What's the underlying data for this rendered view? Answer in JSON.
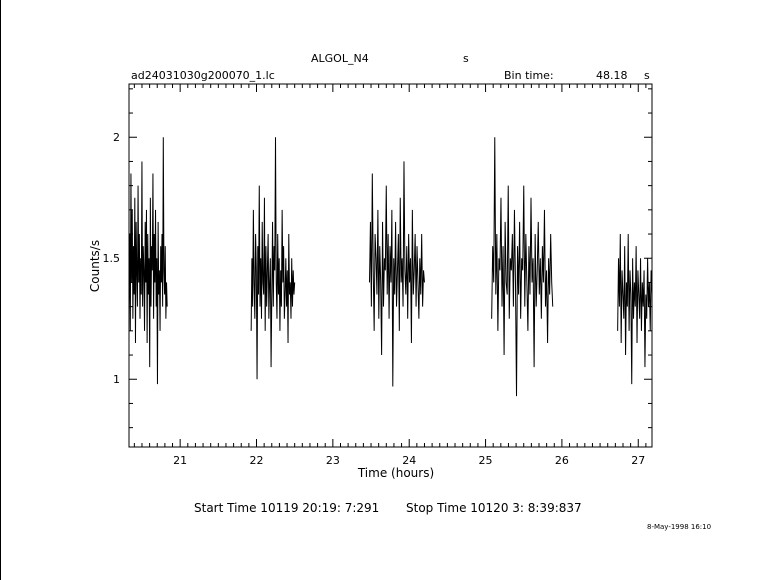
{
  "header": {
    "object_name": "ALGOL_N4",
    "object_unit": "s",
    "file_name": "ad24031030g200070_1.lc",
    "bin_time_label": "Bin time:",
    "bin_time_value": "48.18",
    "bin_time_unit": "s"
  },
  "footer": {
    "start_time": "Start Time 10119 20:19: 7:291",
    "stop_time": "Stop Time 10120  3: 8:39:837",
    "plot_date": "8-May-1998 16:10"
  },
  "chart_data": {
    "type": "line",
    "title": "ALGOL_N4",
    "xlabel": "Time (hours)",
    "ylabel": "Counts/s",
    "xlim": [
      20.33,
      27.18
    ],
    "ylim": [
      0.72,
      2.22
    ],
    "x_ticks": [
      21,
      22,
      23,
      24,
      25,
      26,
      27
    ],
    "y_ticks": [
      1,
      1.5,
      2
    ],
    "grid": false,
    "legend": "none",
    "line_color": "#000000",
    "segments": [
      {
        "x_start": 20.33,
        "x_end": 20.83,
        "values": [
          1.3,
          1.6,
          1.2,
          1.85,
          1.4,
          1.7,
          1.25,
          1.55,
          1.35,
          1.75,
          1.15,
          1.65,
          1.45,
          1.3,
          1.8,
          1.4,
          1.6,
          1.25,
          1.5,
          1.35,
          1.9,
          1.3,
          1.55,
          1.45,
          1.2,
          1.65,
          1.4,
          1.7,
          1.15,
          1.6,
          1.35,
          1.5,
          1.05,
          1.75,
          1.3,
          1.55,
          1.45,
          1.85,
          1.25,
          1.6,
          1.4,
          1.7,
          1.3,
          1.5,
          0.98,
          1.65,
          1.35,
          1.45,
          1.2,
          1.55,
          1.4,
          1.6,
          1.3,
          2.0,
          1.45,
          1.35,
          1.55,
          1.25,
          1.4,
          1.3
        ]
      },
      {
        "x_start": 21.93,
        "x_end": 22.5,
        "values": [
          1.2,
          1.5,
          1.3,
          1.7,
          1.4,
          1.25,
          1.6,
          1.45,
          1.0,
          1.55,
          1.35,
          1.8,
          1.3,
          1.5,
          1.25,
          1.65,
          1.4,
          1.35,
          1.75,
          1.2,
          1.55,
          1.3,
          1.45,
          1.6,
          1.25,
          1.4,
          1.5,
          1.05,
          1.35,
          1.65,
          1.3,
          1.55,
          1.45,
          2.0,
          1.4,
          1.25,
          1.6,
          1.35,
          1.5,
          1.2,
          1.45,
          1.3,
          1.7,
          1.4,
          1.55,
          1.25,
          1.35,
          1.5,
          1.3,
          1.45,
          1.15,
          1.6,
          1.35,
          1.4,
          1.25,
          1.5,
          1.3,
          1.45,
          1.35,
          1.4
        ]
      },
      {
        "x_start": 23.48,
        "x_end": 24.2,
        "values": [
          1.4,
          1.65,
          1.3,
          1.85,
          1.45,
          1.2,
          1.6,
          1.5,
          1.35,
          1.7,
          1.25,
          1.55,
          1.4,
          1.1,
          1.65,
          1.3,
          1.5,
          1.45,
          1.8,
          1.35,
          1.6,
          1.25,
          1.55,
          1.4,
          1.7,
          0.97,
          1.5,
          1.35,
          1.65,
          1.3,
          1.45,
          1.6,
          1.2,
          1.75,
          1.4,
          1.5,
          1.3,
          1.9,
          1.45,
          1.35,
          1.55,
          1.25,
          1.6,
          1.4,
          1.5,
          1.15,
          1.7,
          1.35,
          1.45,
          1.6,
          1.3,
          1.55,
          1.4,
          1.25,
          1.5,
          1.35,
          1.6,
          1.3,
          1.45,
          1.4
        ]
      },
      {
        "x_start": 25.08,
        "x_end": 25.88,
        "values": [
          1.25,
          1.55,
          1.4,
          2.0,
          1.35,
          1.6,
          1.2,
          1.5,
          1.45,
          1.75,
          1.3,
          1.55,
          1.1,
          1.65,
          1.4,
          1.35,
          1.8,
          1.25,
          1.5,
          1.45,
          1.6,
          1.3,
          1.7,
          1.4,
          0.93,
          1.55,
          1.35,
          1.65,
          1.25,
          1.5,
          1.45,
          1.8,
          1.3,
          1.6,
          1.4,
          1.2,
          1.55,
          1.35,
          1.75,
          1.4,
          1.5,
          1.05,
          1.6,
          1.3,
          1.45,
          1.65,
          1.35,
          1.5,
          1.25,
          1.55,
          1.4,
          1.7,
          1.3,
          1.45,
          1.15,
          1.5,
          1.35,
          1.6,
          1.4,
          1.3
        ]
      },
      {
        "x_start": 26.73,
        "x_end": 27.18,
        "values": [
          1.2,
          1.5,
          1.3,
          1.6,
          1.15,
          1.45,
          1.35,
          1.25,
          1.55,
          1.1,
          1.4,
          1.3,
          1.6,
          1.2,
          1.45,
          1.35,
          0.98,
          1.5,
          1.25,
          1.4,
          1.3,
          1.55,
          1.15,
          1.45,
          1.35,
          1.25,
          1.5,
          1.2,
          1.4,
          1.3,
          1.45,
          1.05,
          1.35,
          1.25,
          1.5,
          1.3,
          1.4,
          1.2,
          1.45,
          1.35
        ]
      }
    ]
  }
}
